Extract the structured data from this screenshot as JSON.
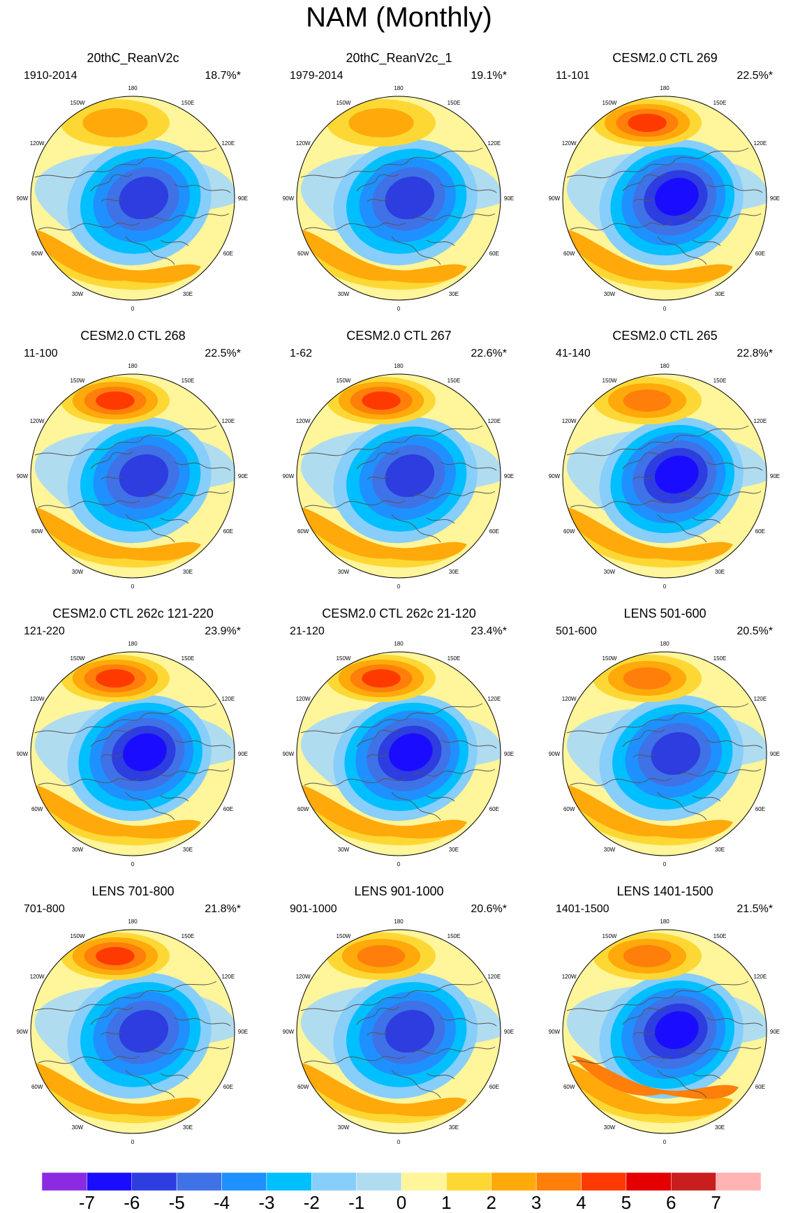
{
  "figure": {
    "title": "NAM (Monthly)"
  },
  "lon_labels": [
    "180",
    "150E",
    "120E",
    "90E",
    "60E",
    "30E",
    "0",
    "30W",
    "60W",
    "90W",
    "120W",
    "150W"
  ],
  "panels": [
    {
      "title": "20thC_ReanV2c",
      "period": "1910-2014",
      "variance": "18.7%*",
      "center_min": -5,
      "pacific_max": 2,
      "atlantic_max": 2
    },
    {
      "title": "20thC_ReanV2c_1",
      "period": "1979-2014",
      "variance": "19.1%*",
      "center_min": -5,
      "pacific_max": 2,
      "atlantic_max": 2
    },
    {
      "title": "CESM2.0 CTL 269",
      "period": "11-101",
      "variance": "22.5%*",
      "center_min": -6,
      "pacific_max": 4,
      "atlantic_max": 2
    },
    {
      "title": "CESM2.0 CTL 268",
      "period": "11-100",
      "variance": "22.5%*",
      "center_min": -5,
      "pacific_max": 4,
      "atlantic_max": 2
    },
    {
      "title": "CESM2.0 CTL 267",
      "period": "1-62",
      "variance": "22.6%*",
      "center_min": -5,
      "pacific_max": 4,
      "atlantic_max": 2
    },
    {
      "title": "CESM2.0 CTL 265",
      "period": "41-140",
      "variance": "22.8%*",
      "center_min": -6,
      "pacific_max": 3,
      "atlantic_max": 2
    },
    {
      "title": "CESM2.0 CTL 262c 121-220",
      "period": "121-220",
      "variance": "23.9%*",
      "center_min": -6,
      "pacific_max": 4,
      "atlantic_max": 2
    },
    {
      "title": "CESM2.0 CTL 262c 21-120",
      "period": "21-120",
      "variance": "23.4%*",
      "center_min": -6,
      "pacific_max": 4,
      "atlantic_max": 2
    },
    {
      "title": "LENS 501-600",
      "period": "501-600",
      "variance": "20.5%*",
      "center_min": -5,
      "pacific_max": 3,
      "atlantic_max": 2
    },
    {
      "title": "LENS 701-800",
      "period": "701-800",
      "variance": "21.8%*",
      "center_min": -5,
      "pacific_max": 4,
      "atlantic_max": 2
    },
    {
      "title": "LENS 901-1000",
      "period": "901-1000",
      "variance": "20.6%*",
      "center_min": -5,
      "pacific_max": 3,
      "atlantic_max": 2
    },
    {
      "title": "LENS 1401-1500",
      "period": "1401-1500",
      "variance": "21.5%*",
      "center_min": -6,
      "pacific_max": 3,
      "atlantic_max": 3
    }
  ],
  "colorbar": {
    "labels": [
      "-7",
      "-6",
      "-5",
      "-4",
      "-3",
      "-2",
      "-1",
      "0",
      "1",
      "2",
      "3",
      "4",
      "5",
      "6",
      "7"
    ],
    "colors": [
      "#8a2be2",
      "#1a0dff",
      "#2d3de0",
      "#3f72e6",
      "#1e90ff",
      "#00bfff",
      "#87cefa",
      "#b0dcf0",
      "#fff59a",
      "#fdd835",
      "#ffa90a",
      "#ff7f0a",
      "#ff3a00",
      "#e50000",
      "#c81e1e",
      "#ffb3b3"
    ]
  }
}
